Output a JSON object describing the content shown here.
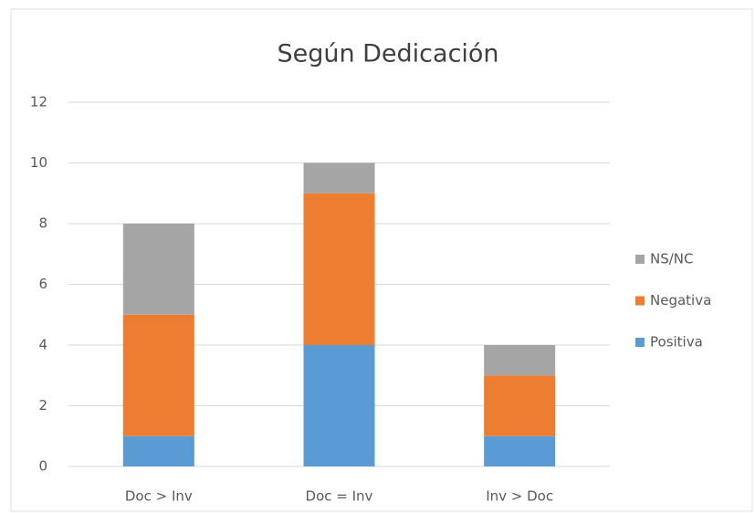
{
  "chart_data": {
    "type": "stacked_bar",
    "title": "Según Dedicación",
    "categories": [
      "Doc > Inv",
      "Doc = Inv",
      "Inv > Doc"
    ],
    "series": [
      {
        "name": "Positiva",
        "color": "#5b9bd5",
        "values": [
          1,
          4,
          1
        ]
      },
      {
        "name": "Negativa",
        "color": "#ed7d31",
        "values": [
          4,
          5,
          2
        ]
      },
      {
        "name": "NS/NC",
        "color": "#a5a5a5",
        "values": [
          3,
          1,
          1
        ]
      }
    ],
    "ylim": [
      0,
      12
    ],
    "yticks": [
      0,
      2,
      4,
      6,
      8,
      10,
      12
    ],
    "grid": true,
    "legend": "right"
  }
}
